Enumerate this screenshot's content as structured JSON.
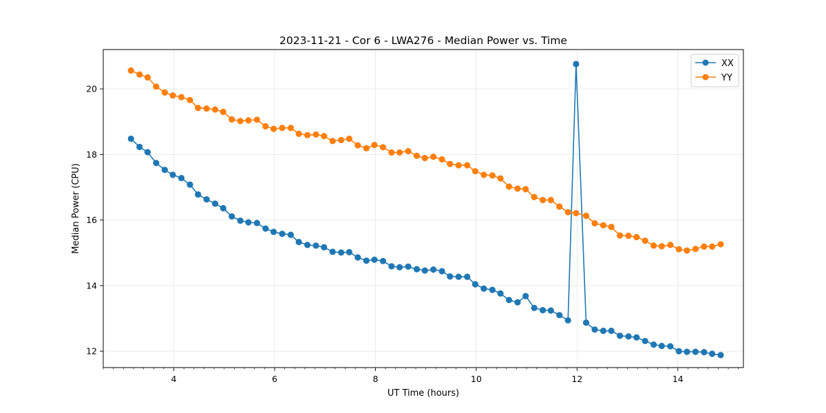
{
  "chart_data": {
    "type": "line",
    "title": "2023-11-21 - Cor 6 - LWA276 - Median Power vs. Time",
    "xlabel": "UT Time (hours)",
    "ylabel": "Median Power (CPU)",
    "xlim": [
      2.6,
      15.3
    ],
    "ylim": [
      11.5,
      21.2
    ],
    "xticks": [
      4,
      6,
      8,
      10,
      12,
      14
    ],
    "xtick_labels": [
      "4",
      "6",
      "8",
      "10",
      "12",
      "14"
    ],
    "yticks": [
      12,
      14,
      16,
      18,
      20
    ],
    "ytick_labels": [
      "12",
      "14",
      "16",
      "18",
      "20"
    ],
    "grid": true,
    "legend_position": "top-right",
    "x": [
      3.15,
      3.32,
      3.48,
      3.65,
      3.82,
      3.98,
      4.15,
      4.32,
      4.48,
      4.65,
      4.82,
      4.98,
      5.15,
      5.32,
      5.48,
      5.65,
      5.82,
      5.98,
      6.15,
      6.32,
      6.48,
      6.65,
      6.82,
      6.98,
      7.15,
      7.32,
      7.48,
      7.65,
      7.82,
      7.98,
      8.15,
      8.32,
      8.48,
      8.65,
      8.82,
      8.98,
      9.15,
      9.32,
      9.48,
      9.65,
      9.82,
      9.98,
      10.15,
      10.32,
      10.48,
      10.65,
      10.82,
      10.98,
      11.15,
      11.32,
      11.48,
      11.65,
      11.82,
      11.98,
      12.18,
      12.35,
      12.52,
      12.68,
      12.85,
      13.02,
      13.18,
      13.35,
      13.52,
      13.68,
      13.85,
      14.02,
      14.18,
      14.35,
      14.52,
      14.68,
      14.85
    ],
    "series": [
      {
        "name": "XX",
        "color": "#1f77b4",
        "values": [
          18.48,
          18.23,
          18.07,
          17.74,
          17.53,
          17.38,
          17.28,
          17.08,
          16.78,
          16.63,
          16.5,
          16.36,
          16.11,
          15.98,
          15.93,
          15.91,
          15.74,
          15.64,
          15.58,
          15.55,
          15.33,
          15.24,
          15.22,
          15.17,
          15.03,
          15.01,
          15.02,
          14.86,
          14.76,
          14.79,
          14.75,
          14.59,
          14.56,
          14.58,
          14.5,
          14.46,
          14.49,
          14.44,
          14.28,
          14.27,
          14.27,
          14.04,
          13.91,
          13.87,
          13.76,
          13.56,
          13.49,
          13.68,
          13.32,
          13.25,
          13.24,
          13.1,
          12.94,
          20.76,
          12.87,
          12.66,
          12.62,
          12.62,
          12.47,
          12.45,
          12.42,
          12.31,
          12.2,
          12.16,
          12.15,
          12.0,
          11.98,
          11.98,
          11.97,
          11.92,
          11.88
        ]
      },
      {
        "name": "YY",
        "color": "#ff7f0e",
        "values": [
          20.56,
          20.44,
          20.35,
          20.07,
          19.89,
          19.8,
          19.75,
          19.66,
          19.42,
          19.4,
          19.37,
          19.3,
          19.07,
          19.02,
          19.04,
          19.06,
          18.86,
          18.78,
          18.81,
          18.81,
          18.63,
          18.59,
          18.61,
          18.56,
          18.41,
          18.44,
          18.48,
          18.28,
          18.19,
          18.29,
          18.22,
          18.06,
          18.06,
          18.1,
          17.96,
          17.89,
          17.93,
          17.85,
          17.71,
          17.67,
          17.67,
          17.49,
          17.38,
          17.36,
          17.27,
          17.02,
          16.96,
          16.94,
          16.7,
          16.61,
          16.61,
          16.41,
          16.24,
          16.21,
          16.13,
          15.9,
          15.84,
          15.79,
          15.53,
          15.52,
          15.48,
          15.37,
          15.22,
          15.2,
          15.24,
          15.11,
          15.07,
          15.12,
          15.19,
          15.19,
          15.26
        ]
      }
    ]
  }
}
